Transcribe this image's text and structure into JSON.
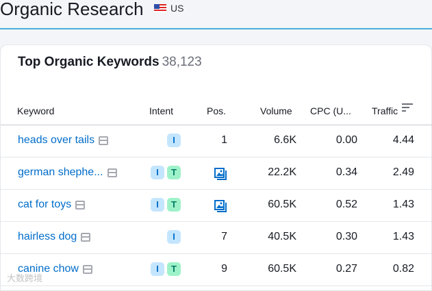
{
  "header": {
    "title": "Organic Research",
    "database": "US"
  },
  "card": {
    "title": "Top Organic Keywords",
    "count": "38,123"
  },
  "columns": {
    "keyword": "Keyword",
    "intent": "Intent",
    "pos": "Pos.",
    "volume": "Volume",
    "cpc": "CPC (U...",
    "traffic": "Traffic"
  },
  "rows": [
    {
      "keyword": "heads over tails",
      "intents": [
        "I"
      ],
      "pos": "1",
      "volume": "6.6K",
      "cpc": "0.00",
      "traffic": "4.44"
    },
    {
      "keyword": "german shephe...",
      "intents": [
        "I",
        "T"
      ],
      "pos": "",
      "pos_icon": "image-pack-icon",
      "volume": "22.2K",
      "cpc": "0.34",
      "traffic": "2.49"
    },
    {
      "keyword": "cat for toys",
      "intents": [
        "I",
        "T"
      ],
      "pos": "",
      "pos_icon": "image-pack-icon",
      "volume": "60.5K",
      "cpc": "0.52",
      "traffic": "1.43"
    },
    {
      "keyword": "hairless dog",
      "intents": [
        "I"
      ],
      "pos": "7",
      "volume": "40.5K",
      "cpc": "0.30",
      "traffic": "1.43"
    },
    {
      "keyword": "canine chow",
      "intents": [
        "I",
        "T"
      ],
      "pos": "9",
      "volume": "60.5K",
      "cpc": "0.27",
      "traffic": "0.82"
    }
  ],
  "watermark": "大数跨境",
  "colors": {
    "link": "#006dca",
    "accent_line": "#45afd8",
    "intent_i": "#c4e5fe",
    "intent_t": "#9ef2c9"
  }
}
